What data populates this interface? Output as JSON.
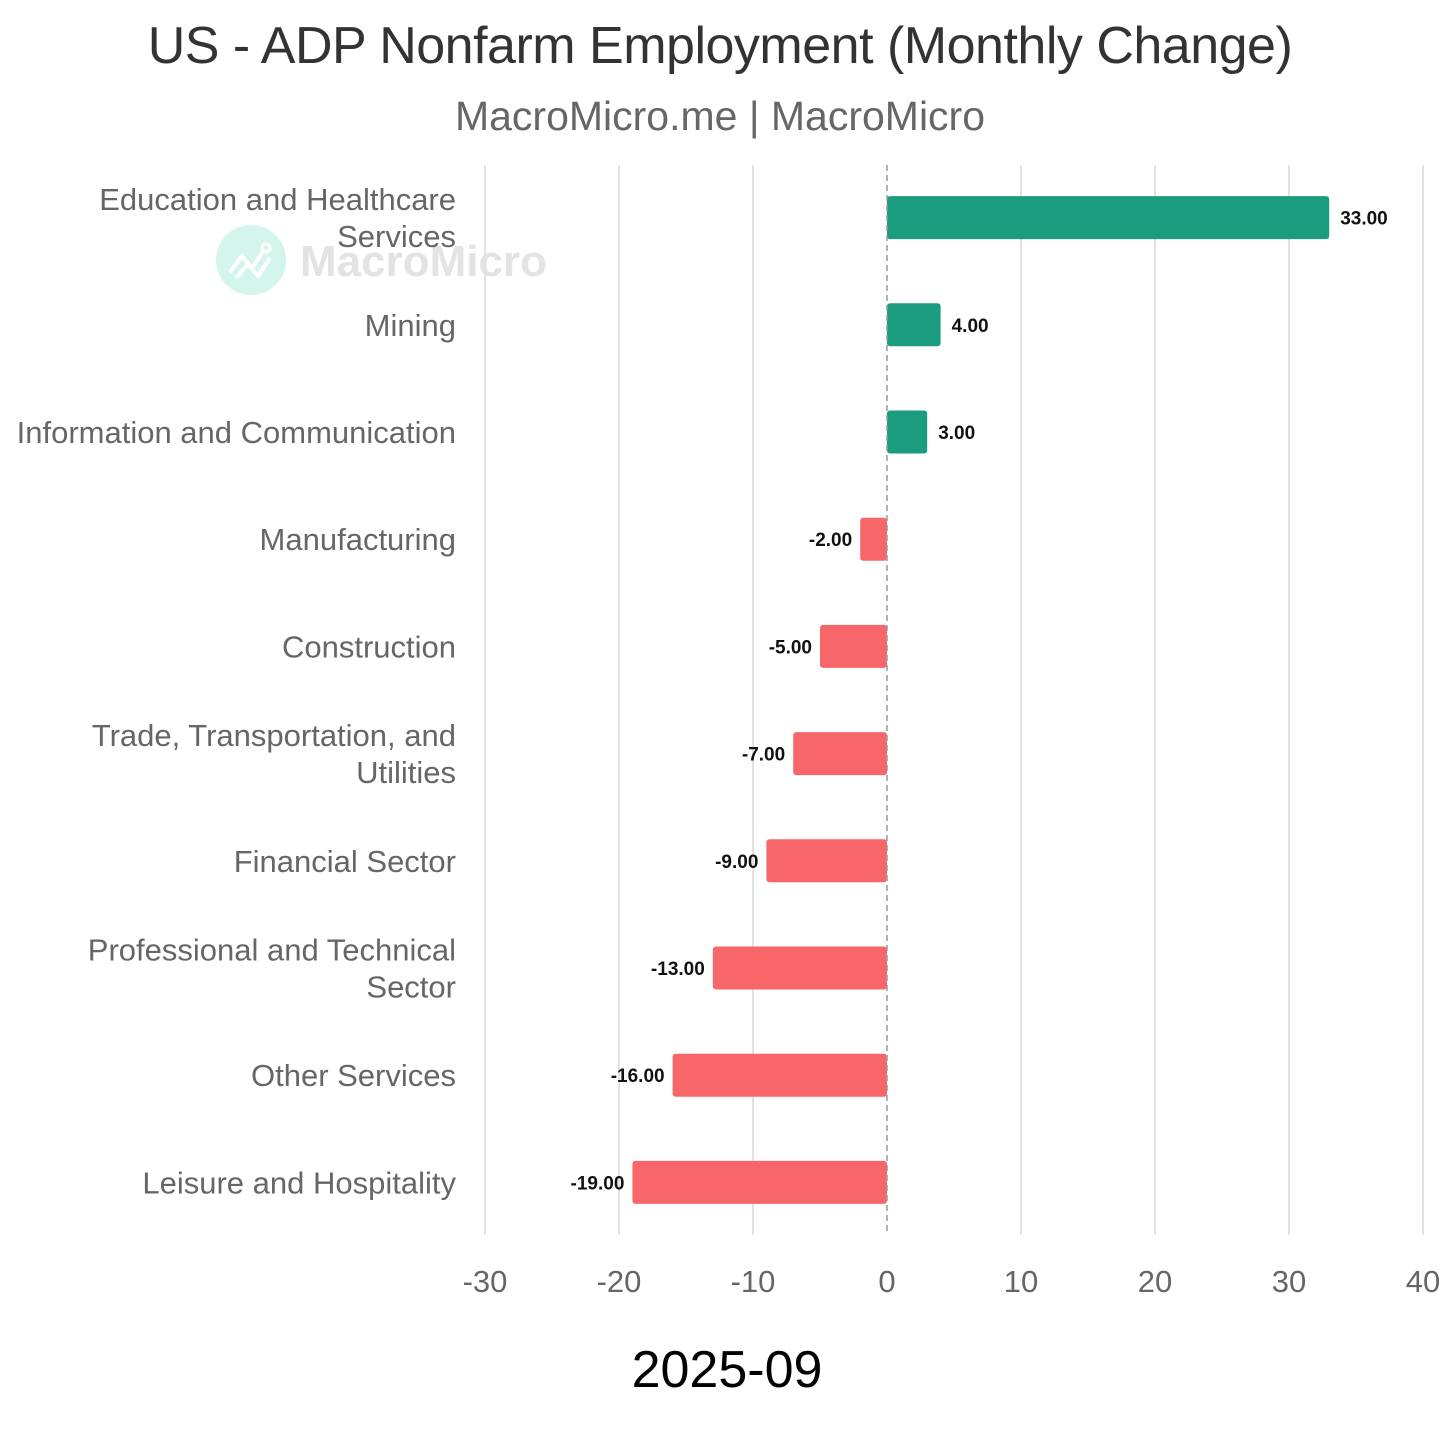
{
  "header": {
    "title": "US - ADP Nonfarm Employment (Monthly Change)",
    "subtitle": "MacroMicro.me | MacroMicro"
  },
  "watermark": {
    "text": "MacroMicro",
    "icon": "macromicro-logo-icon"
  },
  "footer": {
    "period": "2025-09"
  },
  "colors": {
    "positive": "#1b9c7e",
    "negative": "#f7676a",
    "grid": "#e2e2e2",
    "zero_line": "#999999"
  },
  "chart_data": {
    "type": "bar",
    "orientation": "horizontal",
    "title": "US - ADP Nonfarm Employment (Monthly Change)",
    "subtitle": "MacroMicro.me | MacroMicro",
    "xlabel": "2025-09",
    "ylabel": "",
    "categories": [
      "Education and Healthcare Services",
      "Mining",
      "Information and Communication",
      "Manufacturing",
      "Construction",
      "Trade, Transportation, and Utilities",
      "Financial Sector",
      "Professional and Technical Sector",
      "Other Services",
      "Leisure and Hospitality"
    ],
    "category_lines": [
      [
        "Education and Healthcare",
        "Services"
      ],
      [
        "Mining"
      ],
      [
        "Information and Communication"
      ],
      [
        "Manufacturing"
      ],
      [
        "Construction"
      ],
      [
        "Trade, Transportation, and",
        "Utilities"
      ],
      [
        "Financial Sector"
      ],
      [
        "Professional and Technical",
        "Sector"
      ],
      [
        "Other Services"
      ],
      [
        "Leisure and Hospitality"
      ]
    ],
    "values": [
      33,
      4,
      3,
      -2,
      -5,
      -7,
      -9,
      -13,
      -16,
      -19
    ],
    "value_labels": [
      "33.00",
      "4.00",
      "3.00",
      "-2.00",
      "-5.00",
      "-7.00",
      "-9.00",
      "-13.00",
      "-16.00",
      "-19.00"
    ],
    "xlim": [
      -30,
      40
    ],
    "xticks": [
      -30,
      -20,
      -10,
      0,
      10,
      20,
      30,
      40
    ],
    "xtick_labels": [
      "-30",
      "-20",
      "-10",
      "0",
      "10",
      "20",
      "30",
      "40"
    ],
    "grid": true,
    "legend": "none"
  }
}
